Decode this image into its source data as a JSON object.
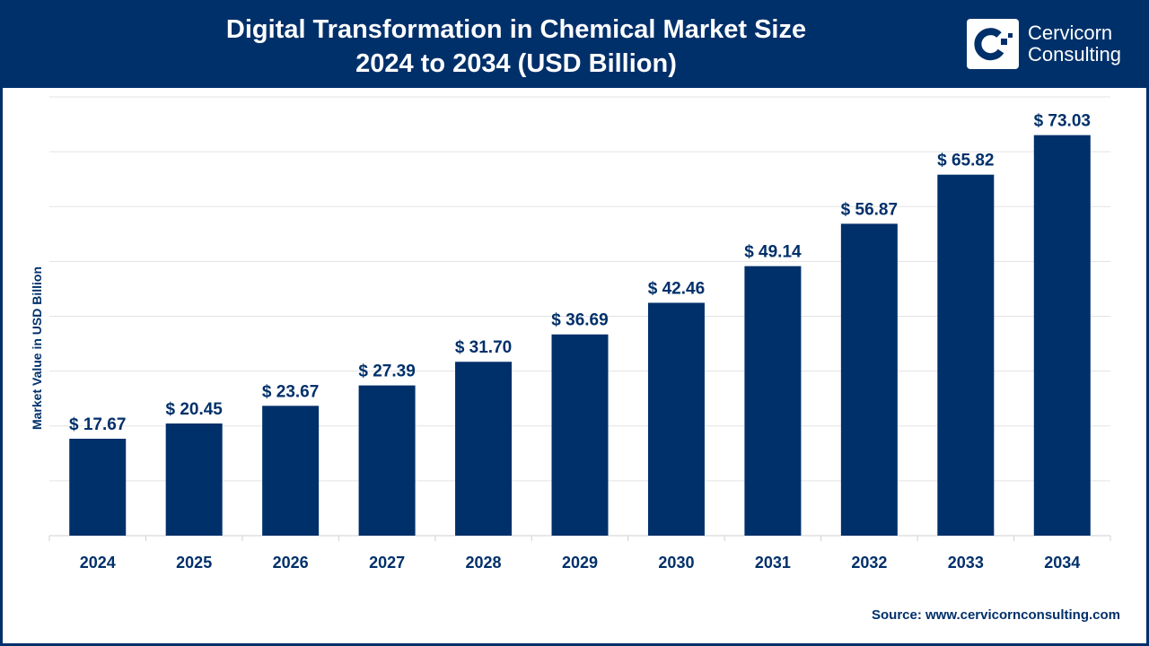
{
  "header": {
    "title_line1": "Digital Transformation in Chemical Market Size",
    "title_line2": "2024 to 2034 (USD Billion)",
    "logo_line1": "Cervicorn",
    "logo_line2": "Consulting"
  },
  "source": "Source: www.cervicornconsulting.com",
  "colors": {
    "bar": "#00306a",
    "header": "#00306a",
    "grid": "#e3e3e3"
  },
  "chart_data": {
    "type": "bar",
    "title": "Digital Transformation in Chemical Market Size 2024 to 2034 (USD Billion)",
    "xlabel": "",
    "ylabel": "Market Value in USD Billion",
    "categories": [
      "2024",
      "2025",
      "2026",
      "2027",
      "2028",
      "2029",
      "2030",
      "2031",
      "2032",
      "2033",
      "2034"
    ],
    "values": [
      17.67,
      20.45,
      23.67,
      27.39,
      31.7,
      36.69,
      42.46,
      49.14,
      56.87,
      65.82,
      73.03
    ],
    "data_labels": [
      "$ 17.67",
      "$ 20.45",
      "$ 23.67",
      "$ 27.39",
      "$ 31.70",
      "$ 36.69",
      "$ 42.46",
      "$ 49.14",
      "$ 56.87",
      "$ 65.82",
      "$ 73.03"
    ],
    "ylim": [
      0,
      80
    ],
    "grid": true,
    "y_tick_labels_visible": false
  }
}
